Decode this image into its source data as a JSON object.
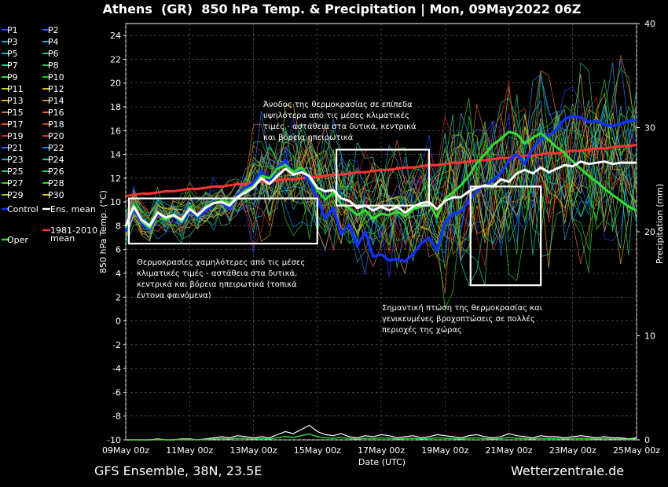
{
  "title": "Athens  (GR)  850 hPa Temp. & Precipitation | Mon, 09May2022 06Z",
  "footer_left": "GFS Ensemble, 38N, 23.5E",
  "footer_right": "Wetterzentrale.de",
  "chart_data": {
    "type": "line",
    "xlabel": "Date (UTC)",
    "ylabel": "850 hPa Temp. (°C)",
    "y2label": "Precipitation (mm)",
    "ylim": [
      -10,
      25
    ],
    "y2lim": [
      0,
      40
    ],
    "yticks": [
      24,
      22,
      20,
      18,
      16,
      14,
      12,
      10,
      8,
      6,
      4,
      2,
      0,
      -2,
      -4,
      -6,
      -8,
      -10
    ],
    "y2ticks": [
      40,
      30,
      20,
      10,
      0
    ],
    "xticks": [
      "09May 00z",
      "11May 00z",
      "13May 00z",
      "15May 00z",
      "17May 00z",
      "19May 00z",
      "21May 00z",
      "23May 00z",
      "25May 00z"
    ],
    "grid": true,
    "legend_position": "left-outside",
    "legend": [
      "P1",
      "P2",
      "P3",
      "P4",
      "P5",
      "P6",
      "P7",
      "P8",
      "P9",
      "P10",
      "P11",
      "P12",
      "P13",
      "P14",
      "P15",
      "P16",
      "P17",
      "P18",
      "P19",
      "P20",
      "P21",
      "P22",
      "P23",
      "P24",
      "P25",
      "P26",
      "P27",
      "P28",
      "P29",
      "P30",
      "Control",
      "Ens. mean",
      "Oper",
      "1981-2010 mean"
    ],
    "colors": {
      "members": [
        "#2244ff",
        "#3355ff",
        "#22aacc",
        "#3399dd",
        "#22aacc",
        "#22bbaa",
        "#22ccaa",
        "#22cc55",
        "#33dd33",
        "#22cc22",
        "#cccc22",
        "#ddbb22",
        "#ddaa22",
        "#cc8833",
        "#cc7744",
        "#dd6633",
        "#dd5522",
        "#cc4422",
        "#cc2222",
        "#dd2222",
        "#3366ff",
        "#2277ee",
        "#22aacc",
        "#22ccaa",
        "#22cc88",
        "#22cc44",
        "#44cc22",
        "#33cc33",
        "#aacc22",
        "#ddcc22"
      ],
      "control": "#1133ff",
      "ens_mean": "#ffffff",
      "oper": "#33dd33",
      "climate": "#ff3333"
    },
    "x": [
      0,
      0.25,
      0.5,
      0.75,
      1,
      1.25,
      1.5,
      1.75,
      2,
      2.25,
      2.5,
      2.75,
      3,
      3.25,
      3.5,
      3.75,
      4,
      4.25,
      4.5,
      4.75,
      5,
      5.25,
      5.5,
      5.75,
      6,
      6.25,
      6.5,
      6.75,
      7,
      7.25,
      7.5,
      7.75,
      8,
      8.25,
      8.5,
      8.75,
      9,
      9.25,
      9.5,
      9.75,
      10,
      10.25,
      10.5,
      10.75,
      11,
      11.25,
      11.5,
      11.75,
      12,
      12.25,
      12.5,
      12.75,
      13,
      13.25,
      13.5,
      13.75,
      14,
      14.25,
      14.5,
      14.75,
      15,
      15.25,
      15.5,
      15.75,
      16
    ],
    "series": [
      {
        "name": "Control",
        "values": [
          7.5,
          9.5,
          8.2,
          7.7,
          9,
          8.6,
          8.8,
          8.2,
          9.3,
          8.7,
          9.2,
          9.9,
          10,
          9.4,
          10.6,
          11.2,
          11.6,
          12.6,
          11.8,
          12.8,
          13.5,
          12.3,
          12.6,
          11.8,
          10.3,
          8.6,
          9.5,
          7.3,
          8.1,
          6.3,
          7.5,
          5.4,
          5.6,
          5.1,
          5.2,
          5,
          5.6,
          6.5,
          7,
          5.9,
          8.3,
          9,
          9.2,
          10.1,
          11,
          11.4,
          11.8,
          12.4,
          13.5,
          14,
          13.2,
          14.5,
          15.3,
          15.6,
          16.1,
          17,
          17.2,
          17.1,
          16.7,
          16.8,
          16.5,
          16.4,
          16.6,
          16.8,
          16.9
        ]
      },
      {
        "name": "Ens. mean",
        "values": [
          8,
          9.6,
          8.5,
          8,
          9.1,
          8.7,
          8.9,
          8.5,
          9.4,
          8.9,
          9.5,
          9.9,
          10,
          9.7,
          10.4,
          10.8,
          11.2,
          12,
          11.5,
          12.2,
          12.8,
          12.3,
          12.5,
          12.2,
          11.2,
          10.9,
          11,
          10.3,
          10.1,
          9.5,
          9.7,
          9.3,
          9.6,
          9.3,
          9.6,
          9.1,
          9.6,
          9.9,
          10,
          9.4,
          10.1,
          10.4,
          10.4,
          10.9,
          11.2,
          11.4,
          11.3,
          11.9,
          11.7,
          12.4,
          12.7,
          12.4,
          12.9,
          12.5,
          12.8,
          13.1,
          13,
          13.4,
          13.2,
          13.3,
          13.4,
          13.2,
          13.3,
          13.3,
          13.3
        ]
      },
      {
        "name": "Oper",
        "values": [
          7.8,
          9.8,
          8.4,
          7.8,
          9.2,
          8.5,
          8.9,
          8.3,
          9.6,
          8.8,
          9.6,
          9.9,
          10.1,
          9.9,
          10.4,
          11,
          11.3,
          12.2,
          12,
          12.8,
          13.1,
          12.5,
          12.9,
          12.1,
          11,
          10.2,
          10.8,
          9.8,
          9.5,
          8.9,
          9.3,
          8.6,
          9,
          8.9,
          9.2,
          8.8,
          9.4,
          9.6,
          9.9,
          8.7,
          10.3,
          10.8,
          11.4,
          12.2,
          13.3,
          14,
          14.8,
          15.3,
          15.9,
          15.7,
          14.9,
          15.4,
          15.8,
          15.2,
          14.6,
          14.1,
          13.4,
          12.8,
          12.2,
          11.7,
          11.1,
          10.6,
          10.1,
          9.6,
          9.3
        ]
      },
      {
        "name": "1981-2010 mean",
        "values": [
          10.5,
          10.6,
          10.7,
          10.7,
          10.8,
          10.9,
          10.9,
          11,
          11.1,
          11.1,
          11.2,
          11.3,
          11.3,
          11.4,
          11.5,
          11.5,
          11.6,
          11.7,
          11.7,
          11.8,
          11.9,
          11.9,
          12,
          12.1,
          12.1,
          12.2,
          12.3,
          12.3,
          12.4,
          12.5,
          12.5,
          12.6,
          12.7,
          12.7,
          12.8,
          12.9,
          12.9,
          13,
          13.1,
          13.1,
          13.2,
          13.3,
          13.3,
          13.4,
          13.5,
          13.5,
          13.6,
          13.7,
          13.7,
          13.8,
          13.9,
          13.9,
          14,
          14.1,
          14.1,
          14.2,
          14.3,
          14.3,
          14.4,
          14.5,
          14.5,
          14.6,
          14.7,
          14.7,
          14.8
        ]
      }
    ],
    "precip_mean": [
      0,
      0,
      0,
      0,
      0.1,
      0,
      0,
      0.1,
      0.1,
      0,
      0.1,
      0.2,
      0.3,
      0.2,
      0.4,
      0.3,
      0.2,
      0.3,
      0.2,
      0.5,
      0.8,
      0.6,
      1,
      1.4,
      0.8,
      0.5,
      0.4,
      0.6,
      0.3,
      0.2,
      0.4,
      0.3,
      0.5,
      0.4,
      0.2,
      0.3,
      0.4,
      0.2,
      0.3,
      0.5,
      0.4,
      0.3,
      0.2,
      0.4,
      0.5,
      0.3,
      0.2,
      0.3,
      0.6,
      0.4,
      0.3,
      0.2,
      0.4,
      0.3,
      0.3,
      0.2,
      0.3,
      0.4,
      0.3,
      0.2,
      0.3,
      0.2,
      0.2,
      0.1,
      0.2
    ],
    "annotations": [
      "Άνοδος της θερμοκρασίας σε επίπεδα υψηλότερα από τις μέσες κλιματικές τιμές - αστάθεια στα δυτικά, κεντρικά και βόρεια ηπειρωτικά",
      "Θερμοκρασίες χαμηλότερες από τις μέσες κλιματικές τιμές - αστάθεια στα δυτικά, κεντρικά και βόρεια ηπειρωτικά (τοπικά έντονα φαινόμενα)",
      "Σημαντική πτώση της θερμοκρασίας και γενικευμένες βροχοπτώσεις σε πολλές περιοχές της χώρας"
    ],
    "annotation_boxes": [
      {
        "x": [
          0.1,
          6
        ],
        "y": [
          6.5,
          10.3
        ]
      },
      {
        "x": [
          6.6,
          9.5
        ],
        "y": [
          9.7,
          14.4
        ]
      },
      {
        "x": [
          10.8,
          13
        ],
        "y": [
          3,
          11.3
        ]
      }
    ]
  }
}
